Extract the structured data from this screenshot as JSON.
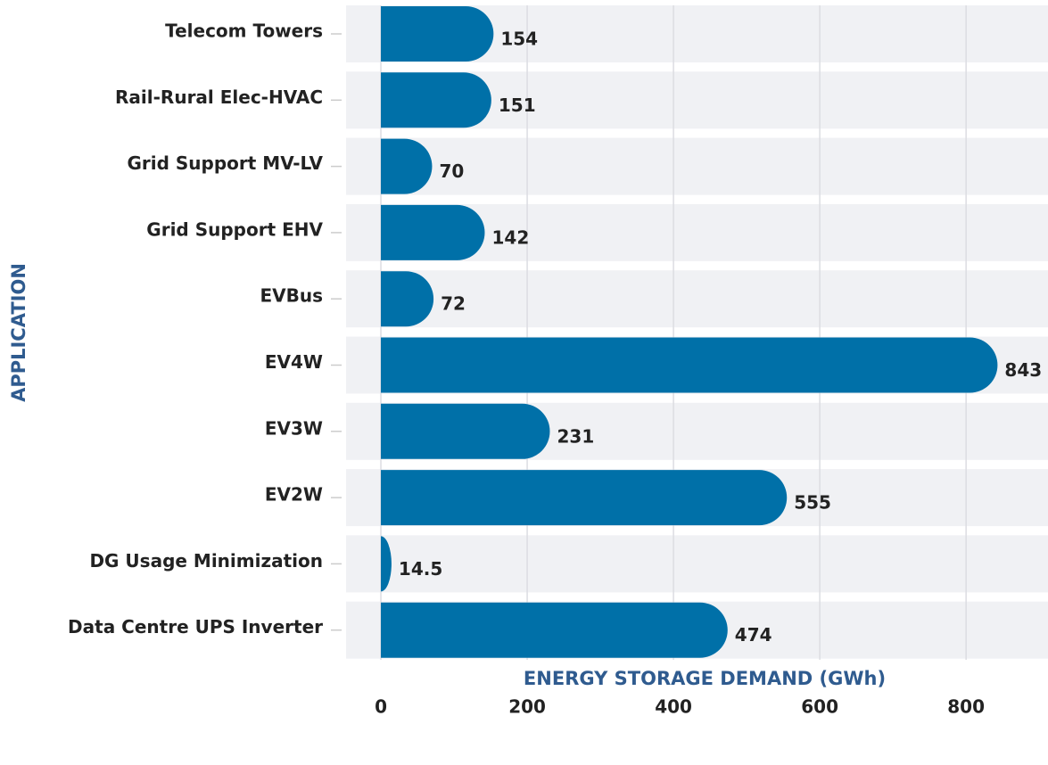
{
  "chart_data": {
    "type": "bar",
    "orientation": "horizontal",
    "x_label": "ENERGY STORAGE DEMAND  (GWh)",
    "y_label": "APPLICATION",
    "categories": [
      "Telecom Towers",
      "Rail-Rural Elec-HVAC",
      "Grid Support MV-LV",
      "Grid Support EHV",
      "EVBus",
      "EV4W",
      "EV3W",
      "EV2W",
      "DG Usage Minimization",
      "Data Centre UPS Inverter"
    ],
    "values": [
      154,
      151,
      70,
      142,
      72,
      843,
      231,
      555,
      14.5,
      474
    ],
    "color": "#0070a8",
    "xlim": [
      -47.6,
      912
    ],
    "xticks": [
      0,
      200,
      400,
      600,
      800
    ],
    "grid": true
  }
}
